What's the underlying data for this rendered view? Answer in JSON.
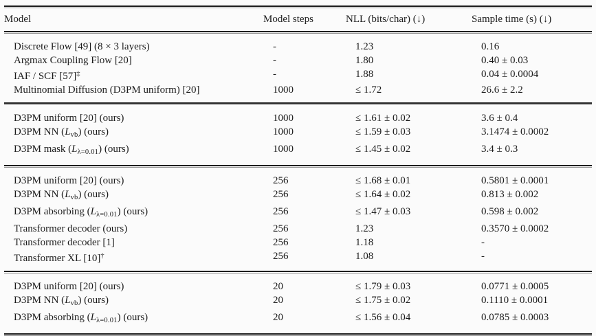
{
  "table": {
    "headers": [
      "Model",
      "Model steps",
      "NLL (bits/char) (↓)",
      "Sample time (s) (↓)"
    ],
    "sections": [
      {
        "rows": [
          {
            "model": [
              {
                "t": "Discrete Flow [49] (8 × 3 layers)"
              }
            ],
            "steps": "-",
            "nll": "1.23",
            "time": "0.16"
          },
          {
            "model": [
              {
                "t": "Argmax Coupling Flow [20]"
              }
            ],
            "steps": "-",
            "nll": "1.80",
            "time": "0.40 ± 0.03"
          },
          {
            "model": [
              {
                "t": "IAF / SCF [57]"
              },
              {
                "t": "‡",
                "s": "sup"
              }
            ],
            "steps": "-",
            "nll": "1.88",
            "time": "0.04 ± 0.0004"
          },
          {
            "model": [
              {
                "t": "Multinomial Diffusion (D3PM uniform) [20]"
              }
            ],
            "steps": "1000",
            "nll": "≤ 1.72",
            "time": "26.6 ± 2.2"
          }
        ]
      },
      {
        "rows": [
          {
            "model": [
              {
                "t": "D3PM uniform [20] (ours)"
              }
            ],
            "steps": "1000",
            "nll": "≤ 1.61 ± 0.02",
            "time": "3.6 ± 0.4"
          },
          {
            "model": [
              {
                "t": "D3PM NN ("
              },
              {
                "t": "L",
                "s": "i"
              },
              {
                "t": "vb",
                "s": "sub"
              },
              {
                "t": ") (ours)"
              }
            ],
            "steps": "1000",
            "nll": "≤ 1.59 ± 0.03",
            "time": "3.1474 ± 0.0002"
          },
          {
            "model": [
              {
                "t": "D3PM mask ("
              },
              {
                "t": "L",
                "s": "i"
              },
              {
                "t": "λ=0.01",
                "s": "sub"
              },
              {
                "t": ") (ours)"
              }
            ],
            "steps": "1000",
            "nll": "≤ 1.45 ± 0.02",
            "time": "3.4 ± 0.3"
          }
        ]
      },
      {
        "rows": [
          {
            "model": [
              {
                "t": "D3PM uniform [20] (ours)"
              }
            ],
            "steps": "256",
            "nll": "≤ 1.68 ± 0.01",
            "time": "0.5801 ± 0.0001"
          },
          {
            "model": [
              {
                "t": "D3PM NN ("
              },
              {
                "t": "L",
                "s": "i"
              },
              {
                "t": "vb",
                "s": "sub"
              },
              {
                "t": ") (ours)"
              }
            ],
            "steps": "256",
            "nll": "≤ 1.64 ± 0.02",
            "time": "0.813 ± 0.002"
          },
          {
            "model": [
              {
                "t": "D3PM absorbing ("
              },
              {
                "t": "L",
                "s": "i"
              },
              {
                "t": "λ=0.01",
                "s": "sub"
              },
              {
                "t": ") (ours)"
              }
            ],
            "steps": "256",
            "nll": "≤ 1.47 ± 0.03",
            "time": "0.598 ± 0.002"
          },
          {
            "model": [
              {
                "t": "Transformer decoder (ours)"
              }
            ],
            "steps": "256",
            "nll": "1.23",
            "time": "0.3570 ± 0.0002"
          },
          {
            "model": [
              {
                "t": "Transformer decoder [1]"
              }
            ],
            "steps": "256",
            "nll": "1.18",
            "time": "-"
          },
          {
            "model": [
              {
                "t": "Transformer XL [10]"
              },
              {
                "t": "†",
                "s": "sup"
              }
            ],
            "steps": "256",
            "nll": "1.08",
            "time": "-"
          }
        ]
      },
      {
        "rows": [
          {
            "model": [
              {
                "t": "D3PM uniform [20] (ours)"
              }
            ],
            "steps": "20",
            "nll": "≤ 1.79 ± 0.03",
            "time": "0.0771 ± 0.0005"
          },
          {
            "model": [
              {
                "t": "D3PM NN ("
              },
              {
                "t": "L",
                "s": "i"
              },
              {
                "t": "vb",
                "s": "sub"
              },
              {
                "t": ") (ours)"
              }
            ],
            "steps": "20",
            "nll": "≤ 1.75 ± 0.02",
            "time": "0.1110 ± 0.0001"
          },
          {
            "model": [
              {
                "t": "D3PM absorbing ("
              },
              {
                "t": "L",
                "s": "i"
              },
              {
                "t": "λ=0.01",
                "s": "sub"
              },
              {
                "t": ") (ours)"
              }
            ],
            "steps": "20",
            "nll": "≤ 1.56 ± 0.04",
            "time": "0.0785 ± 0.0003"
          }
        ]
      }
    ]
  }
}
